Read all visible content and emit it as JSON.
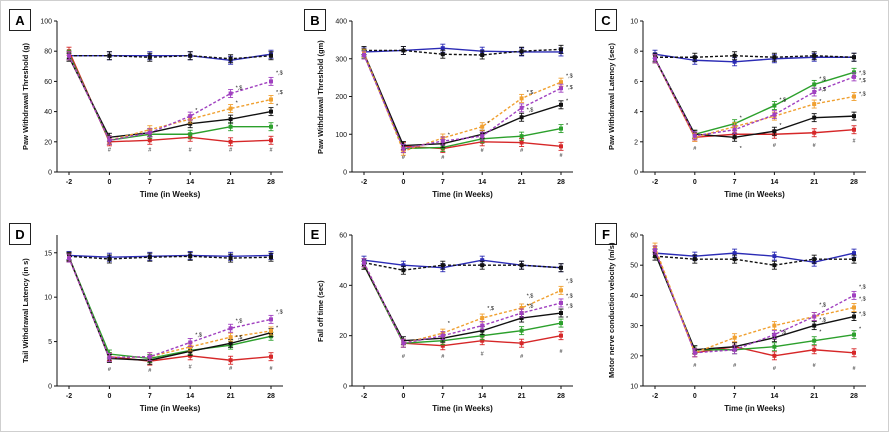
{
  "colors": {
    "normal_control": "#2b2bb5",
    "normal_treated": "#111111",
    "diabetic": "#d62728",
    "treat_green": "#2ca02c",
    "treat_black": "#111111",
    "treat_orange": "#f0a030",
    "treat_purple": "#a040c0"
  },
  "chart_data": [
    {
      "panel": "A",
      "type": "line",
      "ylabel": "Paw Withdrawal Threshold (g)",
      "xlabel": "Time (in Weeks)",
      "categories": [
        "-2",
        "0",
        "7",
        "14",
        "21",
        "28"
      ],
      "yticks": [
        0,
        20,
        40,
        60,
        80,
        100
      ],
      "ylim": [
        0,
        100
      ],
      "series": [
        {
          "key": "normal_control",
          "dashed": false,
          "values": [
            77,
            77,
            77,
            77,
            74,
            78
          ]
        },
        {
          "key": "normal_treated",
          "dashed": true,
          "values": [
            77,
            77,
            76,
            77,
            75,
            77
          ]
        },
        {
          "key": "diabetic",
          "dashed": false,
          "values": [
            80,
            20,
            21,
            23,
            20,
            21
          ]
        },
        {
          "key": "treat_green",
          "dashed": false,
          "values": [
            78,
            21,
            25,
            25,
            30,
            30
          ]
        },
        {
          "key": "treat_black",
          "dashed": false,
          "values": [
            76,
            23,
            26,
            32,
            35,
            40
          ]
        },
        {
          "key": "treat_orange",
          "dashed": true,
          "values": [
            77,
            21,
            28,
            35,
            42,
            48
          ]
        },
        {
          "key": "treat_purple",
          "dashed": true,
          "values": [
            77,
            21,
            26,
            37,
            52,
            60
          ]
        }
      ],
      "annotations": [
        {
          "x": "0",
          "y": 15,
          "text": "#"
        },
        {
          "x": "7",
          "y": 15,
          "text": "#"
        },
        {
          "x": "14",
          "y": 15,
          "text": "#"
        },
        {
          "x": "21",
          "y": 15,
          "text": "#"
        },
        {
          "x": "28",
          "y": 15,
          "text": "#"
        },
        {
          "x": "14",
          "y": 41,
          "text": "*"
        },
        {
          "x": "21",
          "y": 56,
          "text": "*,$"
        },
        {
          "x": "28",
          "y": 66,
          "text": "*,$"
        },
        {
          "x": "28",
          "y": 53,
          "text": "*,$"
        },
        {
          "x": "21",
          "y": 46,
          "text": "*"
        },
        {
          "x": "28",
          "y": 44,
          "text": "*"
        },
        {
          "x": "28",
          "y": 30,
          "text": "*"
        }
      ]
    },
    {
      "panel": "B",
      "type": "line",
      "ylabel": "Paw Withdrawal Threshold (gm)",
      "xlabel": "Time (in Weeks)",
      "categories": [
        "-2",
        "0",
        "7",
        "14",
        "21",
        "28"
      ],
      "yticks": [
        0,
        100,
        200,
        300,
        400
      ],
      "ylim": [
        0,
        400
      ],
      "series": [
        {
          "key": "normal_control",
          "dashed": false,
          "values": [
            318,
            322,
            328,
            320,
            318,
            318
          ]
        },
        {
          "key": "normal_treated",
          "dashed": true,
          "values": [
            322,
            322,
            312,
            310,
            320,
            325
          ]
        },
        {
          "key": "diabetic",
          "dashed": false,
          "values": [
            310,
            68,
            62,
            80,
            78,
            68
          ]
        },
        {
          "key": "treat_green",
          "dashed": false,
          "values": [
            312,
            62,
            65,
            88,
            95,
            115
          ]
        },
        {
          "key": "treat_black",
          "dashed": false,
          "values": [
            315,
            70,
            75,
            100,
            145,
            178
          ]
        },
        {
          "key": "treat_orange",
          "dashed": true,
          "values": [
            315,
            55,
            90,
            120,
            195,
            238
          ]
        },
        {
          "key": "treat_purple",
          "dashed": true,
          "values": [
            310,
            62,
            82,
            95,
            170,
            222
          ]
        }
      ],
      "annotations": [
        {
          "x": "0",
          "y": 40,
          "text": "#"
        },
        {
          "x": "7",
          "y": 40,
          "text": "#"
        },
        {
          "x": "14",
          "y": 58,
          "text": "#"
        },
        {
          "x": "21",
          "y": 58,
          "text": "#"
        },
        {
          "x": "28",
          "y": 45,
          "text": "#"
        },
        {
          "x": "7",
          "y": 100,
          "text": "*"
        },
        {
          "x": "14",
          "y": 130,
          "text": "*"
        },
        {
          "x": "21",
          "y": 212,
          "text": "*,$"
        },
        {
          "x": "28",
          "y": 255,
          "text": "*,$"
        },
        {
          "x": "28",
          "y": 225,
          "text": "*,$"
        },
        {
          "x": "21",
          "y": 165,
          "text": "*,$"
        },
        {
          "x": "28",
          "y": 190,
          "text": "*"
        },
        {
          "x": "28",
          "y": 125,
          "text": "*"
        }
      ]
    },
    {
      "panel": "C",
      "type": "line",
      "ylabel": "Paw Withdrawal Latency (sec)",
      "xlabel": "Time (in Weeks)",
      "categories": [
        "-2",
        "0",
        "7",
        "14",
        "21",
        "28"
      ],
      "yticks": [
        0,
        2,
        4,
        6,
        8,
        10
      ],
      "ylim": [
        0,
        10
      ],
      "series": [
        {
          "key": "normal_control",
          "dashed": false,
          "values": [
            7.8,
            7.4,
            7.3,
            7.5,
            7.6,
            7.6
          ]
        },
        {
          "key": "normal_treated",
          "dashed": true,
          "values": [
            7.6,
            7.6,
            7.7,
            7.6,
            7.7,
            7.6
          ]
        },
        {
          "key": "diabetic",
          "dashed": false,
          "values": [
            7.5,
            2.3,
            2.5,
            2.5,
            2.6,
            2.8
          ]
        },
        {
          "key": "treat_green",
          "dashed": false,
          "values": [
            7.5,
            2.5,
            3.2,
            4.4,
            5.8,
            6.6
          ]
        },
        {
          "key": "treat_black",
          "dashed": false,
          "values": [
            7.5,
            2.5,
            2.3,
            2.7,
            3.6,
            3.7
          ]
        },
        {
          "key": "treat_orange",
          "dashed": true,
          "values": [
            7.5,
            2.3,
            3.0,
            3.7,
            4.5,
            5.0
          ]
        },
        {
          "key": "treat_purple",
          "dashed": true,
          "values": [
            7.5,
            2.4,
            2.8,
            3.8,
            5.3,
            6.3
          ]
        }
      ],
      "annotations": [
        {
          "x": "0",
          "y": 1.6,
          "text": "#"
        },
        {
          "x": "7",
          "y": 1.6,
          "text": "*"
        },
        {
          "x": "14",
          "y": 1.8,
          "text": "#"
        },
        {
          "x": "21",
          "y": 1.8,
          "text": "#"
        },
        {
          "x": "28",
          "y": 2.1,
          "text": "#"
        },
        {
          "x": "7",
          "y": 3.6,
          "text": "*"
        },
        {
          "x": "14",
          "y": 4.8,
          "text": "*,$"
        },
        {
          "x": "21",
          "y": 6.2,
          "text": "*,$"
        },
        {
          "x": "28",
          "y": 6.6,
          "text": "*,$"
        },
        {
          "x": "28",
          "y": 6.1,
          "text": "*,$"
        },
        {
          "x": "21",
          "y": 5.5,
          "text": "*,$"
        },
        {
          "x": "28",
          "y": 5.2,
          "text": "*,$"
        },
        {
          "x": "21",
          "y": 4.7,
          "text": "*"
        },
        {
          "x": "14",
          "y": 3.1,
          "text": "*"
        }
      ]
    },
    {
      "panel": "D",
      "type": "line",
      "ylabel": "Tail  Withdrawal Latency (in s)",
      "xlabel": "Time (in Weeks)",
      "categories": [
        "-2",
        "0",
        "7",
        "14",
        "21",
        "28"
      ],
      "yticks": [
        0,
        5,
        10,
        15
      ],
      "ylim": [
        0,
        17
      ],
      "series": [
        {
          "key": "normal_control",
          "dashed": false,
          "values": [
            14.7,
            14.5,
            14.6,
            14.7,
            14.6,
            14.7
          ]
        },
        {
          "key": "normal_treated",
          "dashed": true,
          "values": [
            14.6,
            14.3,
            14.5,
            14.6,
            14.4,
            14.5
          ]
        },
        {
          "key": "diabetic",
          "dashed": false,
          "values": [
            14.5,
            3.3,
            2.8,
            3.4,
            2.9,
            3.3
          ]
        },
        {
          "key": "treat_green",
          "dashed": false,
          "values": [
            14.5,
            3.6,
            3.1,
            4.0,
            4.6,
            5.6
          ]
        },
        {
          "key": "treat_black",
          "dashed": false,
          "values": [
            14.5,
            3.1,
            2.9,
            3.9,
            4.8,
            6.0
          ]
        },
        {
          "key": "treat_orange",
          "dashed": true,
          "values": [
            14.4,
            3.2,
            3.3,
            4.4,
            5.5,
            6.2
          ]
        },
        {
          "key": "treat_purple",
          "dashed": true,
          "values": [
            14.4,
            3.2,
            3.3,
            4.9,
            6.5,
            7.5
          ]
        }
      ],
      "annotations": [
        {
          "x": "0",
          "y": 1.9,
          "text": "#"
        },
        {
          "x": "7",
          "y": 1.8,
          "text": "#"
        },
        {
          "x": "14",
          "y": 2.2,
          "text": "#"
        },
        {
          "x": "21",
          "y": 2.0,
          "text": "#"
        },
        {
          "x": "28",
          "y": 2.0,
          "text": "#"
        },
        {
          "x": "14",
          "y": 5.8,
          "text": "*,$"
        },
        {
          "x": "21",
          "y": 7.4,
          "text": "*,$"
        },
        {
          "x": "28",
          "y": 8.4,
          "text": "*,$"
        },
        {
          "x": "21",
          "y": 5.5,
          "text": "*,$"
        },
        {
          "x": "28",
          "y": 6.6,
          "text": "*"
        }
      ]
    },
    {
      "panel": "E",
      "type": "line",
      "ylabel": "Fall off time (sec)",
      "xlabel": "Time (in Weeks)",
      "categories": [
        "-2",
        "0",
        "7",
        "14",
        "21",
        "28"
      ],
      "yticks": [
        0,
        20,
        40,
        60
      ],
      "ylim": [
        0,
        60
      ],
      "series": [
        {
          "key": "normal_control",
          "dashed": false,
          "values": [
            50,
            48,
            47,
            50,
            48,
            47
          ]
        },
        {
          "key": "normal_treated",
          "dashed": true,
          "values": [
            49,
            46,
            48,
            48,
            48,
            47
          ]
        },
        {
          "key": "diabetic",
          "dashed": false,
          "values": [
            48,
            17,
            16,
            18,
            17,
            20
          ]
        },
        {
          "key": "treat_green",
          "dashed": false,
          "values": [
            48,
            17,
            18,
            20,
            22,
            25
          ]
        },
        {
          "key": "treat_black",
          "dashed": false,
          "values": [
            48,
            18,
            19,
            22,
            27,
            29
          ]
        },
        {
          "key": "treat_orange",
          "dashed": true,
          "values": [
            49,
            17,
            21,
            27,
            31,
            38
          ]
        },
        {
          "key": "treat_purple",
          "dashed": true,
          "values": [
            49,
            17,
            20,
            24,
            29,
            33
          ]
        }
      ],
      "annotations": [
        {
          "x": "0",
          "y": 12,
          "text": "#"
        },
        {
          "x": "7",
          "y": 12,
          "text": "#"
        },
        {
          "x": "14",
          "y": 13,
          "text": "#"
        },
        {
          "x": "21",
          "y": 12,
          "text": "#"
        },
        {
          "x": "28",
          "y": 14,
          "text": "#"
        },
        {
          "x": "7",
          "y": 25,
          "text": "*"
        },
        {
          "x": "14",
          "y": 31,
          "text": "*,$"
        },
        {
          "x": "21",
          "y": 36,
          "text": "*,$"
        },
        {
          "x": "28",
          "y": 42,
          "text": "*,$"
        },
        {
          "x": "21",
          "y": 32,
          "text": "*,$"
        },
        {
          "x": "28",
          "y": 36,
          "text": "*,$"
        },
        {
          "x": "28",
          "y": 32,
          "text": "*,$"
        },
        {
          "x": "28",
          "y": 27,
          "text": "*"
        }
      ]
    },
    {
      "panel": "F",
      "type": "line",
      "ylabel": "Motor nerve conduction velocity (m/s)",
      "xlabel": "Time (in Weeks)",
      "categories": [
        "-2",
        "0",
        "7",
        "14",
        "21",
        "28"
      ],
      "yticks": [
        10,
        20,
        30,
        40,
        50,
        60
      ],
      "ylim": [
        10,
        60
      ],
      "series": [
        {
          "key": "normal_control",
          "dashed": false,
          "values": [
            54,
            53,
            54,
            53,
            51,
            54
          ]
        },
        {
          "key": "normal_treated",
          "dashed": true,
          "values": [
            53,
            52,
            52,
            50,
            52,
            52
          ]
        },
        {
          "key": "diabetic",
          "dashed": false,
          "values": [
            55,
            21,
            23,
            20,
            22,
            21
          ]
        },
        {
          "key": "treat_green",
          "dashed": false,
          "values": [
            54,
            22,
            22,
            23,
            25,
            27
          ]
        },
        {
          "key": "treat_black",
          "dashed": false,
          "values": [
            54,
            22,
            23,
            26,
            30,
            33
          ]
        },
        {
          "key": "treat_orange",
          "dashed": true,
          "values": [
            56,
            21,
            26,
            30,
            33,
            36
          ]
        },
        {
          "key": "treat_purple",
          "dashed": true,
          "values": [
            55,
            21,
            22,
            27,
            33,
            40
          ]
        }
      ],
      "annotations": [
        {
          "x": "0",
          "y": 17,
          "text": "#"
        },
        {
          "x": "7",
          "y": 17,
          "text": "#"
        },
        {
          "x": "14",
          "y": 16,
          "text": "#"
        },
        {
          "x": "21",
          "y": 17,
          "text": "#"
        },
        {
          "x": "28",
          "y": 16,
          "text": "#"
        },
        {
          "x": "14",
          "y": 28,
          "text": "*,$"
        },
        {
          "x": "21",
          "y": 37,
          "text": "*,$"
        },
        {
          "x": "28",
          "y": 43,
          "text": "*,$"
        },
        {
          "x": "28",
          "y": 39,
          "text": "*,$"
        },
        {
          "x": "21",
          "y": 32,
          "text": "*,$"
        },
        {
          "x": "28",
          "y": 34,
          "text": "*,$"
        },
        {
          "x": "28",
          "y": 29,
          "text": "*"
        },
        {
          "x": "21",
          "y": 28,
          "text": "*"
        }
      ]
    }
  ]
}
